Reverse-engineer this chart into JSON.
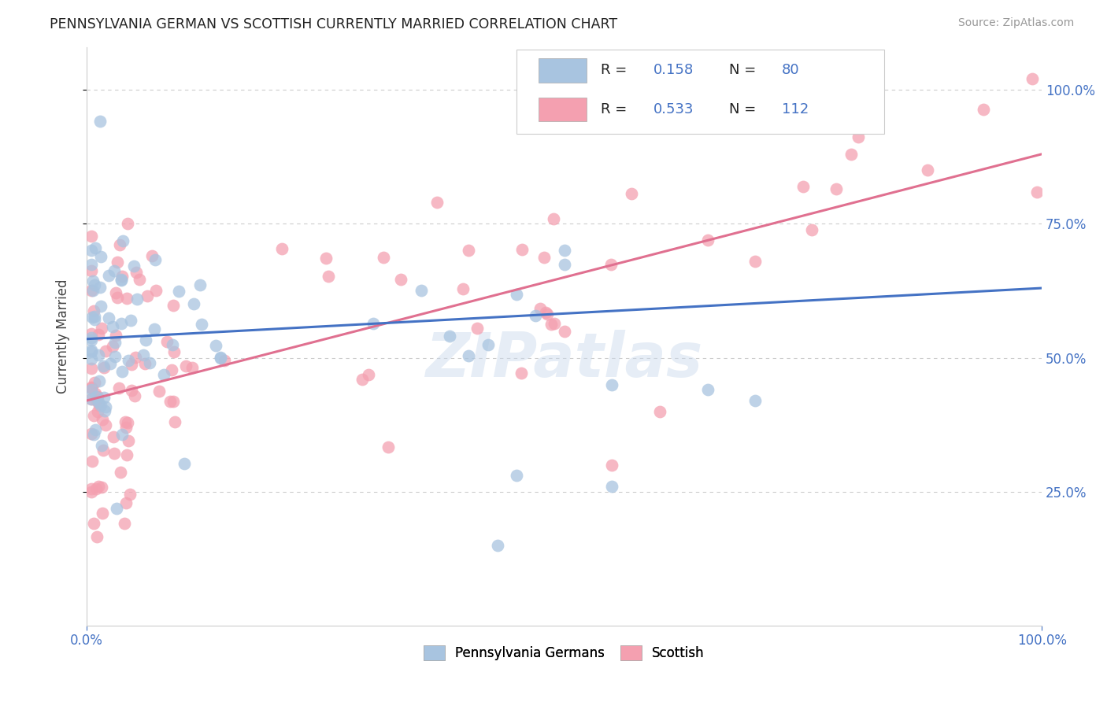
{
  "title": "PENNSYLVANIA GERMAN VS SCOTTISH CURRENTLY MARRIED CORRELATION CHART",
  "source": "Source: ZipAtlas.com",
  "ylabel": "Currently Married",
  "xlim": [
    0.0,
    1.0
  ],
  "ylim": [
    0.0,
    1.08
  ],
  "pa_german_R": 0.158,
  "pa_german_N": 80,
  "scottish_R": 0.533,
  "scottish_N": 112,
  "pa_color": "#a8c4e0",
  "sc_color": "#f4a0b0",
  "pa_line_color": "#4472c4",
  "sc_line_color": "#e07090",
  "background_color": "#ffffff",
  "grid_color": "#cccccc",
  "watermark": "ZIPatlas",
  "pa_line_start_y": 0.535,
  "pa_line_end_y": 0.63,
  "sc_line_start_y": 0.42,
  "sc_line_end_y": 0.88
}
